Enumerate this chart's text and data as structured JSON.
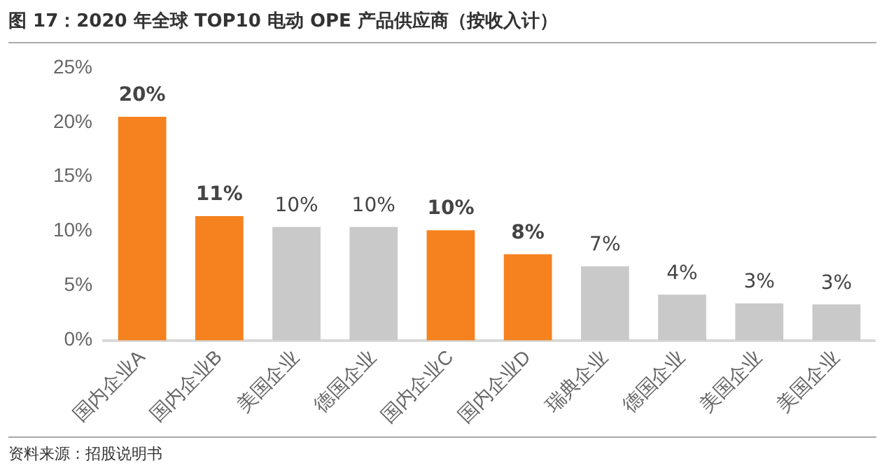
{
  "chart_data": {
    "type": "bar",
    "title": "图 17：2020 年全球 TOP10 电动 OPE 产品供应商（按收入计）",
    "categories": [
      "国内企业A",
      "国内企业B",
      "美国企业",
      "德国企业",
      "国内企业C",
      "国内企业D",
      "瑞典企业",
      "德国企业",
      "美国企业",
      "美国企业"
    ],
    "values": [
      20.5,
      11.4,
      10.4,
      10.4,
      10.1,
      7.9,
      6.8,
      4.2,
      3.4,
      3.3
    ],
    "value_labels": [
      "20%",
      "11%",
      "10%",
      "10%",
      "10%",
      "8%",
      "7%",
      "4%",
      "3%",
      "3%"
    ],
    "colors": [
      "#f5821f",
      "#f5821f",
      "#c9c9c9",
      "#c9c9c9",
      "#f5821f",
      "#f5821f",
      "#c9c9c9",
      "#c9c9c9",
      "#c9c9c9",
      "#c9c9c9"
    ],
    "ylim": [
      0,
      25
    ],
    "yticks": [
      {
        "value": 0,
        "label": "0%"
      },
      {
        "value": 5,
        "label": "5%"
      },
      {
        "value": 10,
        "label": "10%"
      },
      {
        "value": 15,
        "label": "15%"
      },
      {
        "value": 20,
        "label": "20%"
      },
      {
        "value": 25,
        "label": "25%"
      }
    ],
    "grid": false,
    "legend": false,
    "annotations": [
      "资料来源：招股说明书"
    ]
  }
}
